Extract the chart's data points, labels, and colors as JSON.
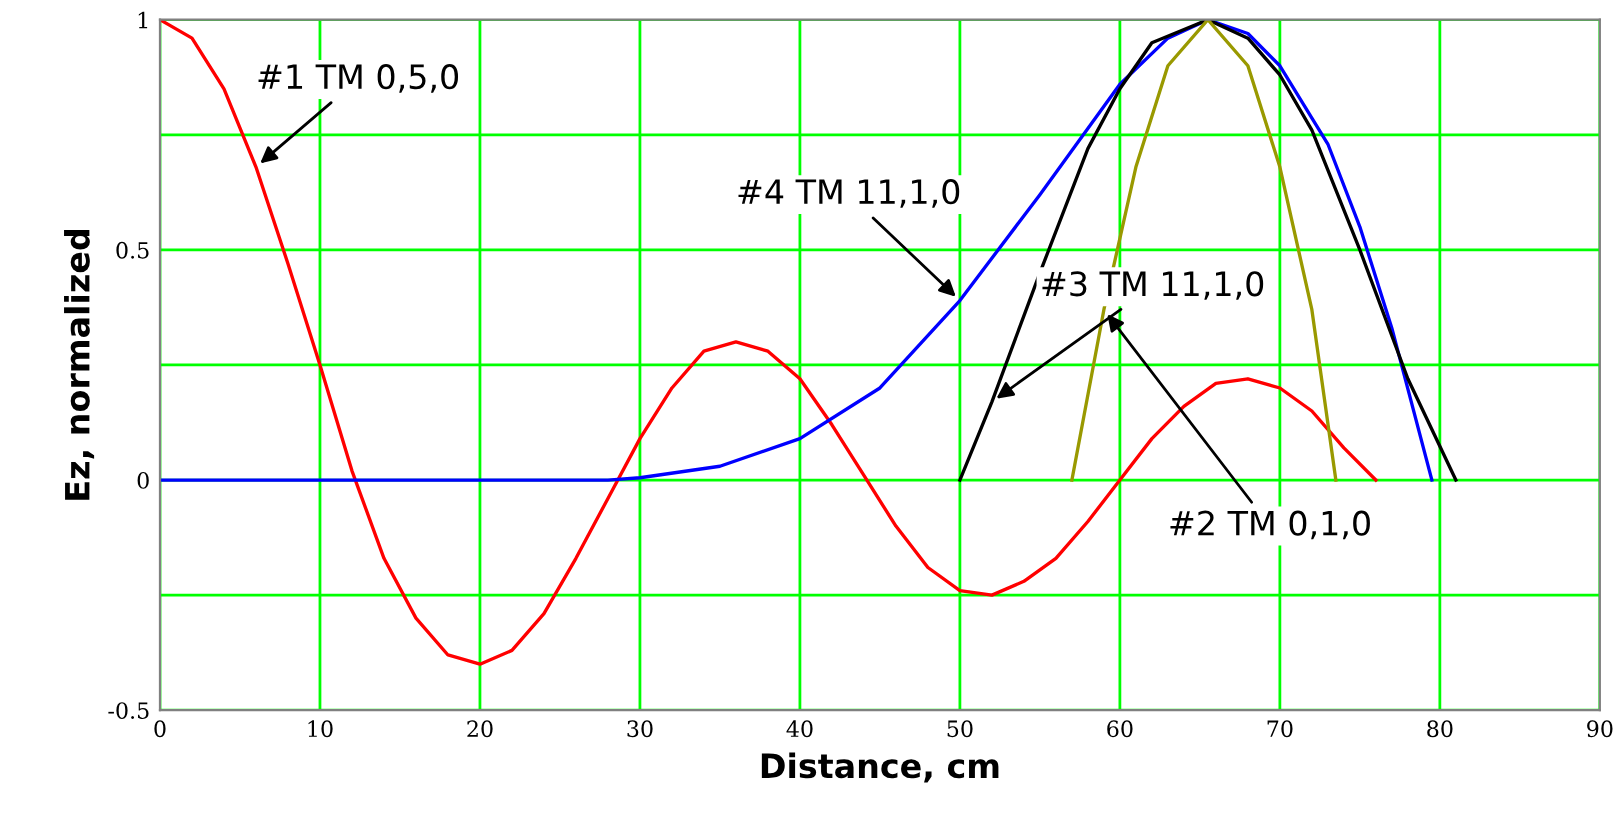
{
  "chart_data": {
    "type": "line",
    "xlabel": "Distance, cm",
    "ylabel": "Ez, normalized",
    "xlim": [
      0,
      90
    ],
    "xticks": [
      0,
      10,
      20,
      30,
      40,
      50,
      60,
      70,
      80,
      90
    ],
    "ylim": [
      -0.5,
      1
    ],
    "yticks": [
      {
        "value": -0.5,
        "label": "-0.5"
      },
      {
        "value": -0.25,
        "label": null
      },
      0,
      {
        "value": 0.25,
        "label": null
      },
      0.5,
      {
        "value": 0.75,
        "label": null
      },
      1
    ],
    "grid": true,
    "marker": "none",
    "line_style": "solid",
    "series": [
      {
        "name": "#1 TM 0,5,0",
        "color": "#ff0000",
        "x": [
          0,
          2,
          4,
          6,
          8,
          10,
          12,
          14,
          16,
          18,
          20,
          22,
          24,
          26,
          28,
          30,
          32,
          34,
          36,
          38,
          40,
          42,
          44,
          46,
          48,
          50,
          52,
          54,
          56,
          58,
          60,
          62,
          64,
          66,
          68,
          70,
          72,
          74,
          76
        ],
        "values": [
          1,
          0.96,
          0.85,
          0.68,
          0.47,
          0.25,
          0.02,
          -0.17,
          -0.3,
          -0.38,
          -0.4,
          -0.37,
          -0.29,
          -0.17,
          -0.04,
          0.09,
          0.2,
          0.28,
          0.3,
          0.28,
          0.22,
          0.12,
          0.01,
          -0.1,
          -0.19,
          -0.24,
          -0.25,
          -0.22,
          -0.17,
          -0.09,
          0,
          0.09,
          0.16,
          0.21,
          0.22,
          0.2,
          0.15,
          0.07,
          0
        ]
      },
      {
        "name": "#4 TM 11,1,0",
        "color": "#0000ff",
        "x": [
          0,
          28,
          30,
          35,
          40,
          45,
          50,
          55,
          60,
          63,
          65.5,
          68,
          70,
          73,
          75,
          77,
          79.5
        ],
        "values": [
          0,
          0,
          0.005,
          0.03,
          0.09,
          0.2,
          0.39,
          0.62,
          0.86,
          0.96,
          1,
          0.97,
          0.9,
          0.73,
          0.55,
          0.33,
          0
        ]
      },
      {
        "name": "#3 TM 11,1,0",
        "color": "#000000",
        "x": [
          50,
          52,
          55,
          58,
          60,
          62,
          65.5,
          68,
          70,
          72,
          75,
          78,
          81
        ],
        "values": [
          0,
          0.17,
          0.45,
          0.72,
          0.85,
          0.95,
          1,
          0.96,
          0.88,
          0.76,
          0.5,
          0.22,
          0
        ]
      },
      {
        "name": "#2 TM 0,1,0",
        "color": "#999900",
        "x": [
          57,
          59,
          61,
          63,
          65.5,
          68,
          70,
          72,
          73.5
        ],
        "values": [
          0,
          0.37,
          0.68,
          0.9,
          1,
          0.9,
          0.68,
          0.37,
          0
        ]
      }
    ]
  }
}
